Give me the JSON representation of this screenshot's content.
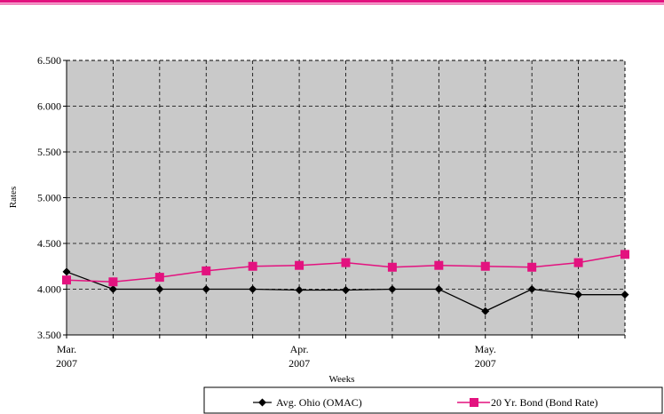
{
  "chart_data": {
    "type": "line",
    "xlabel": "Weeks",
    "ylabel": "Rates",
    "ylim": [
      3.5,
      6.5
    ],
    "y_ticks": [
      "3.500",
      "4.000",
      "4.500",
      "5.000",
      "5.500",
      "6.000",
      "6.500"
    ],
    "x_tick_labels": [
      {
        "index": 0,
        "line1": "Mar.",
        "line2": "2007"
      },
      {
        "index": 5,
        "line1": "Apr.",
        "line2": "2007"
      },
      {
        "index": 9,
        "line1": "May.",
        "line2": "2007"
      }
    ],
    "n_points": 13,
    "grid": true,
    "legend_position": "bottom",
    "series": [
      {
        "name": "Avg. Ohio (OMAC)",
        "color": "#000000",
        "marker": "diamond",
        "values": [
          4.19,
          4.0,
          4.0,
          4.0,
          4.0,
          3.99,
          3.99,
          4.0,
          4.0,
          3.76,
          4.0,
          3.94,
          3.94
        ]
      },
      {
        "name": "20 Yr. Bond (Bond Rate)",
        "color": "#e3127f",
        "marker": "square",
        "values": [
          4.1,
          4.08,
          4.13,
          4.2,
          4.25,
          4.26,
          4.29,
          4.24,
          4.26,
          4.25,
          4.24,
          4.29,
          4.38
        ]
      }
    ]
  }
}
